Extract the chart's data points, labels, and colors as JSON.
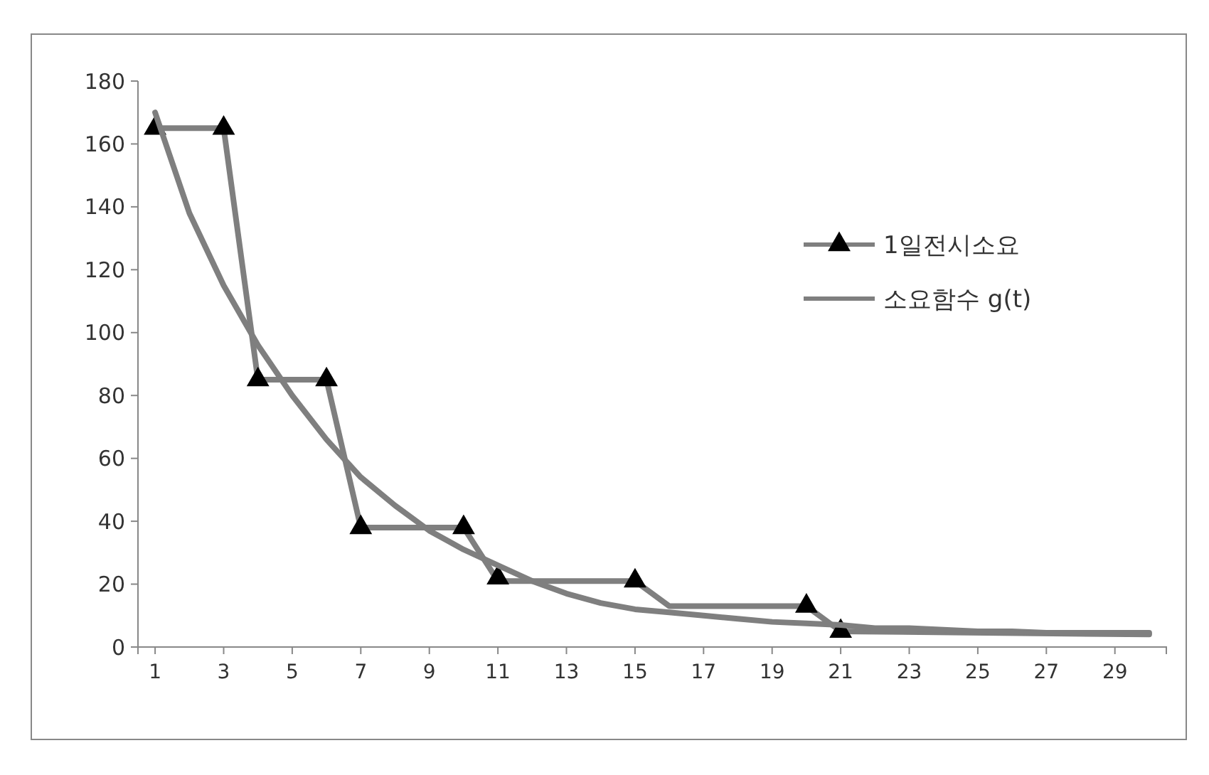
{
  "chart_data": {
    "type": "line",
    "xlim": [
      0.5,
      30.5
    ],
    "ylim": [
      0,
      180
    ],
    "yticks": [
      0,
      20,
      40,
      60,
      80,
      100,
      120,
      140,
      160,
      180
    ],
    "xticks": [
      1,
      3,
      5,
      7,
      9,
      11,
      13,
      15,
      17,
      19,
      21,
      23,
      25,
      27,
      29
    ],
    "grid": false,
    "legend": "right",
    "series": [
      {
        "name": "1일전시소요",
        "type": "line",
        "marker": "none",
        "color": "#7f7f7f",
        "x": [
          1,
          3,
          4,
          6,
          7,
          10,
          11,
          15,
          16,
          20,
          21,
          30
        ],
        "values": [
          165,
          165,
          85,
          85,
          38,
          38,
          21,
          21,
          13,
          13,
          5,
          4
        ]
      },
      {
        "type": "scatter",
        "marker": "triangle",
        "color": "#000000",
        "x": [
          1,
          3,
          4,
          6,
          7,
          10,
          11,
          15,
          20,
          21
        ],
        "values": [
          165,
          165,
          85,
          85,
          38,
          38,
          22,
          21,
          13,
          5
        ]
      },
      {
        "name": "소요함수 g(t)",
        "type": "line",
        "marker": "none",
        "color": "#7f7f7f",
        "x": [
          1,
          2,
          3,
          4,
          5,
          6,
          7,
          8,
          9,
          10,
          11,
          12,
          13,
          14,
          15,
          16,
          17,
          18,
          19,
          20,
          21,
          22,
          23,
          24,
          25,
          26,
          27,
          28,
          29,
          30
        ],
        "values": [
          170,
          138,
          115,
          96,
          80,
          66,
          54,
          45,
          37,
          31,
          26,
          21,
          17,
          14,
          12,
          11,
          10,
          9,
          8,
          7.5,
          7,
          6,
          6,
          5.5,
          5,
          5,
          4.5,
          4.5,
          4.5,
          4.5
        ]
      }
    ]
  }
}
